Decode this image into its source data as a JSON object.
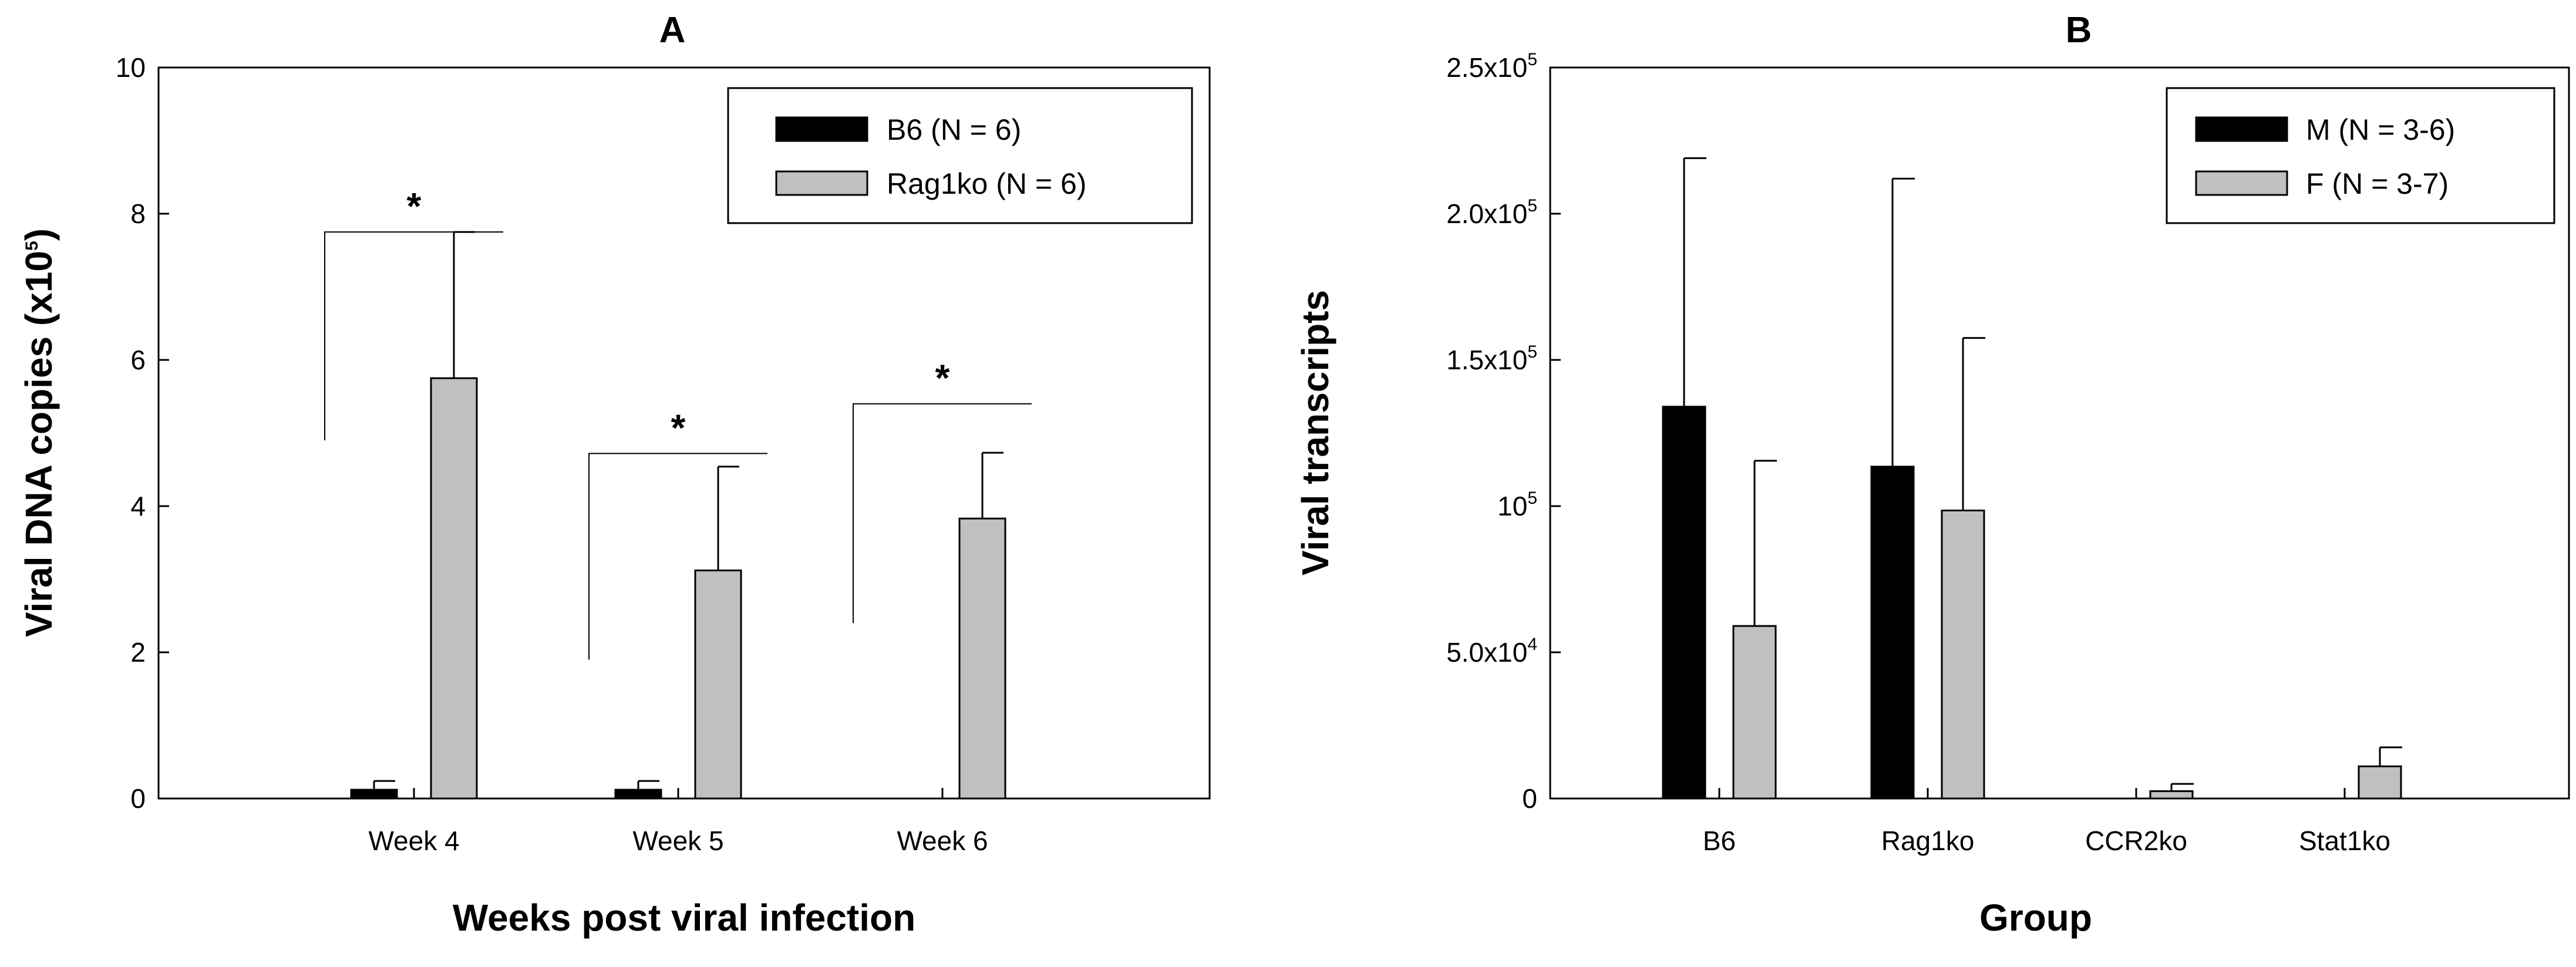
{
  "colors": {
    "series1": "#000000",
    "series2": "#c0c0c0",
    "axis": "#000000",
    "background": "#ffffff"
  },
  "chart_data": [
    {
      "panel": "A",
      "type": "bar",
      "title": "A",
      "xlabel": "Weeks post viral infection",
      "ylabel": "Viral DNA copies (x10",
      "ylabel_exponent": "5",
      "ylabel_close": ")",
      "ylim": [
        0,
        10
      ],
      "yticks": [
        0,
        2,
        4,
        6,
        8,
        10
      ],
      "ytick_labels": [
        "0",
        "2",
        "4",
        "6",
        "8",
        "10"
      ],
      "categories": [
        "Week 4",
        "Week 5",
        "Week 6"
      ],
      "series": [
        {
          "name": "B6 (N = 6)",
          "values": [
            0.12,
            0.12,
            0
          ],
          "errors": [
            0.12,
            0.12,
            0
          ]
        },
        {
          "name": "Rag1ko (N = 6)",
          "values": [
            5.75,
            3.12,
            3.83
          ],
          "errors": [
            2.0,
            1.42,
            0.9
          ]
        }
      ],
      "significance": [
        {
          "category_index": 0,
          "label": "*",
          "bracket_y": 7.75,
          "left_drop_y": 4.9
        },
        {
          "category_index": 1,
          "label": "*",
          "bracket_y": 4.72,
          "left_drop_y": 1.9
        },
        {
          "category_index": 2,
          "label": "*",
          "bracket_y": 5.4,
          "left_drop_y": 2.4
        }
      ],
      "legend_position": "top-right",
      "grid": false
    },
    {
      "panel": "B",
      "type": "bar",
      "title": "B",
      "xlabel": "Group",
      "ylabel": "Viral transcripts",
      "ylim": [
        0,
        250000
      ],
      "yticks": [
        0,
        50000,
        100000,
        150000,
        200000,
        250000
      ],
      "ytick_labels": [
        {
          "base": "0",
          "exp": ""
        },
        {
          "base": "5.0x10",
          "exp": "4"
        },
        {
          "base": "10",
          "exp": "5"
        },
        {
          "base": "1.5x10",
          "exp": "5"
        },
        {
          "base": "2.0x10",
          "exp": "5"
        },
        {
          "base": "2.5x10",
          "exp": "5"
        }
      ],
      "categories": [
        "B6",
        "Rag1ko",
        "CCR2ko",
        "Stat1ko"
      ],
      "series": [
        {
          "name": "M (N = 3-6)",
          "values": [
            134000,
            113500,
            0,
            0
          ],
          "errors": [
            85000,
            98500,
            0,
            0
          ]
        },
        {
          "name": "F (N = 3-7)",
          "values": [
            59000,
            98500,
            2500,
            11000
          ],
          "errors": [
            56500,
            59000,
            2500,
            6500
          ]
        }
      ],
      "legend_position": "top-right",
      "grid": false
    }
  ]
}
